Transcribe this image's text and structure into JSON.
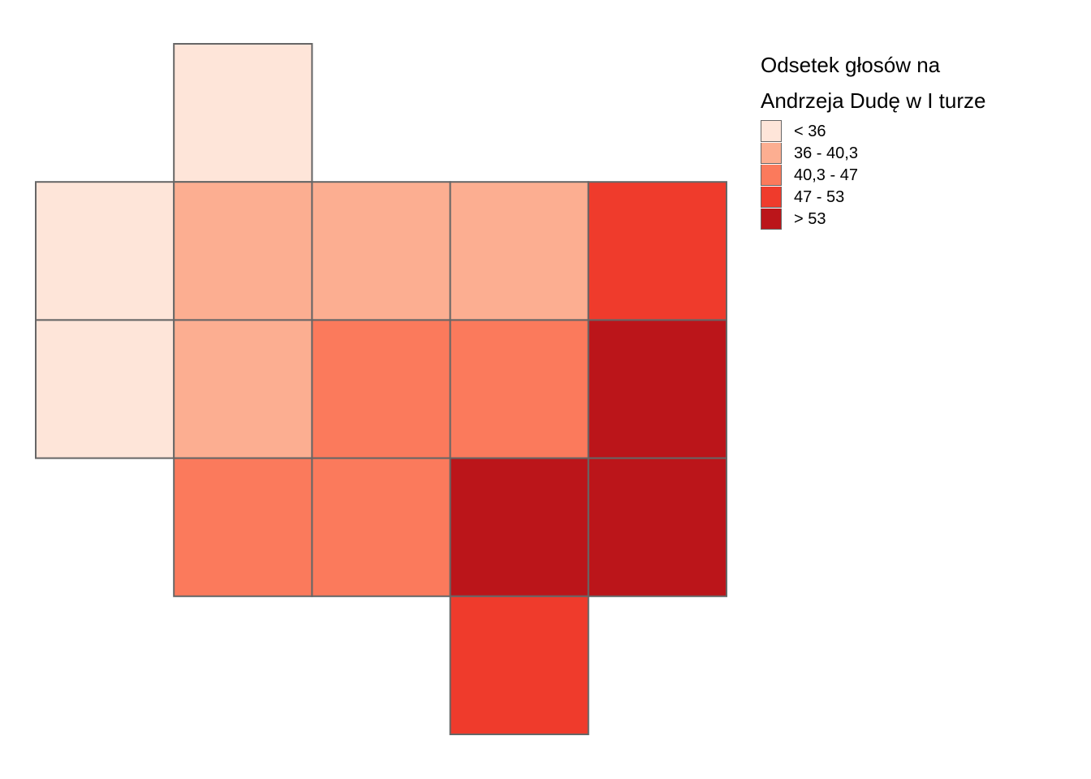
{
  "legend": {
    "title_line1": "Odsetek głosów na",
    "title_line2": "Andrzeja Dudę w I turze",
    "classes": [
      {
        "label": "< 36",
        "color": "#fee5d9"
      },
      {
        "label": "36 - 40,3",
        "color": "#fcae91"
      },
      {
        "label": "40,3 - 47",
        "color": "#fb7a5c"
      },
      {
        "label": "47 - 53",
        "color": "#ef3b2c"
      },
      {
        "label": "> 53",
        "color": "#bb151a"
      }
    ]
  },
  "chart_data": {
    "type": "heatmap",
    "description_of_values": "class index per grid cell (0 = '< 36' ... 4 = '> 53'), null = no cell",
    "border_color": "#666666",
    "rows": [
      [
        null,
        0,
        null,
        null,
        null
      ],
      [
        0,
        1,
        1,
        1,
        3
      ],
      [
        0,
        1,
        2,
        2,
        4
      ],
      [
        null,
        2,
        2,
        4,
        4
      ],
      [
        null,
        null,
        null,
        3,
        null
      ]
    ]
  }
}
